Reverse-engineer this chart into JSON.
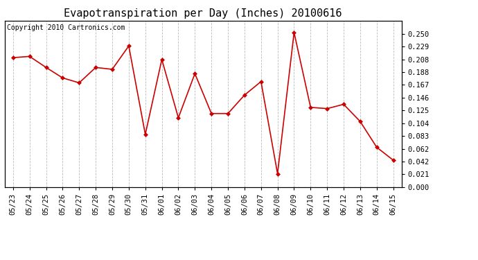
{
  "title": "Evapotranspiration per Day (Inches) 20100616",
  "copyright_text": "Copyright 2010 Cartronics.com",
  "categories": [
    "05/23",
    "05/24",
    "05/25",
    "05/26",
    "05/27",
    "05/28",
    "05/29",
    "05/30",
    "05/31",
    "06/01",
    "06/02",
    "06/03",
    "06/04",
    "06/05",
    "06/06",
    "06/07",
    "06/08",
    "06/09",
    "06/10",
    "06/11",
    "06/12",
    "06/13",
    "06/14",
    "06/15"
  ],
  "values": [
    0.211,
    0.213,
    0.195,
    0.178,
    0.17,
    0.195,
    0.192,
    0.23,
    0.086,
    0.208,
    0.113,
    0.185,
    0.12,
    0.12,
    0.15,
    0.172,
    0.022,
    0.252,
    0.13,
    0.128,
    0.135,
    0.107,
    0.065,
    0.044
  ],
  "line_color": "#cc0000",
  "marker": "D",
  "marker_size": 3,
  "ylim": [
    0.0,
    0.271
  ],
  "yticks": [
    0.0,
    0.021,
    0.042,
    0.062,
    0.083,
    0.104,
    0.125,
    0.146,
    0.167,
    0.188,
    0.208,
    0.229,
    0.25
  ],
  "background_color": "#ffffff",
  "grid_color": "#bbbbbb",
  "title_fontsize": 11,
  "tick_fontsize": 7.5,
  "copyright_fontsize": 7
}
